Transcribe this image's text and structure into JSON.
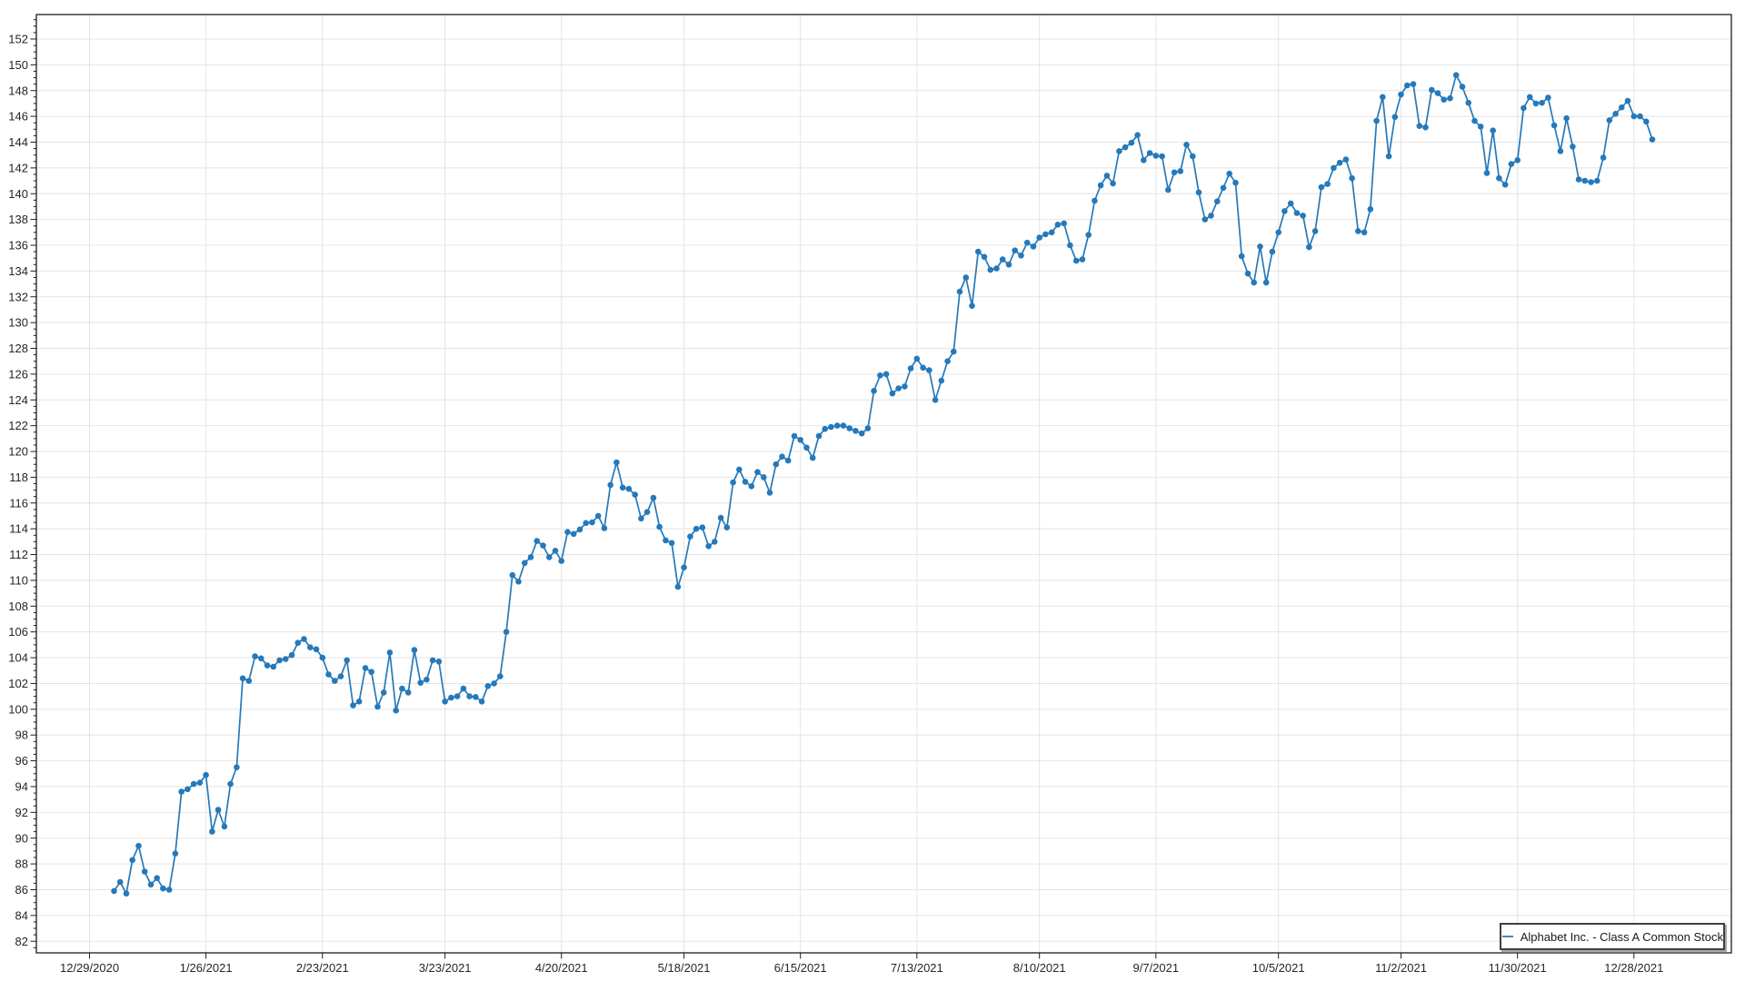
{
  "app": {
    "background": "#ffffff"
  },
  "legend": {
    "label": "Alphabet Inc. - Class A Common Stock",
    "position": "bottom-right"
  },
  "colors": {
    "background": "#ffffff",
    "line": "#2579ba",
    "marker": "#2579ba",
    "grid": "#e4e4e4",
    "axis": "#1c1c1c",
    "tick_label": "#262626",
    "legend_border": "#3f3f3f",
    "legend_shadow": "#a9a9a9",
    "legend_text": "#1a1a1a"
  },
  "chart_data": {
    "type": "line",
    "title": "",
    "grid": true,
    "markers": true,
    "legend_position": "bottom-right",
    "y_axis": {
      "min_label": 82,
      "max_label": 152,
      "step": 2,
      "minor_step": 0.5,
      "range": [
        81.1,
        153.9
      ]
    },
    "x_axis": {
      "range_indices": [
        -12.68,
        263.9
      ]
    },
    "x_ticks": [
      {
        "label": "12/29/2020",
        "index": -4
      },
      {
        "label": "1/26/2021",
        "index": 15
      },
      {
        "label": "2/23/2021",
        "index": 34
      },
      {
        "label": "3/23/2021",
        "index": 54
      },
      {
        "label": "4/20/2021",
        "index": 73
      },
      {
        "label": "5/18/2021",
        "index": 93
      },
      {
        "label": "6/15/2021",
        "index": 112
      },
      {
        "label": "7/13/2021",
        "index": 131
      },
      {
        "label": "8/10/2021",
        "index": 151
      },
      {
        "label": "9/7/2021",
        "index": 170
      },
      {
        "label": "10/5/2021",
        "index": 190
      },
      {
        "label": "11/2/2021",
        "index": 210
      },
      {
        "label": "11/30/2021",
        "index": 229
      },
      {
        "label": "12/28/2021",
        "index": 248
      }
    ],
    "series": [
      {
        "name": "Alphabet Inc. - Class A Common Stock",
        "color": "#2579ba",
        "marker": "circle",
        "values": [
          85.9,
          86.6,
          85.7,
          88.3,
          89.4,
          87.4,
          86.4,
          86.9,
          86.1,
          86.0,
          88.8,
          93.6,
          93.8,
          94.2,
          94.3,
          94.9,
          90.5,
          92.2,
          90.9,
          94.2,
          95.5,
          102.4,
          102.2,
          104.1,
          103.95,
          103.4,
          103.3,
          103.8,
          103.9,
          104.2,
          105.15,
          105.45,
          104.8,
          104.65,
          104.0,
          102.7,
          102.2,
          102.55,
          103.8,
          100.3,
          100.6,
          103.2,
          102.9,
          100.2,
          101.3,
          104.4,
          99.9,
          101.6,
          101.3,
          104.6,
          102.05,
          102.3,
          103.8,
          103.7,
          100.6,
          100.9,
          101.0,
          101.6,
          101.0,
          100.95,
          100.6,
          101.8,
          102.0,
          102.55,
          106.0,
          110.4,
          109.9,
          111.35,
          111.8,
          113.05,
          112.7,
          111.8,
          112.3,
          111.5,
          113.75,
          113.6,
          113.95,
          114.45,
          114.5,
          115.0,
          114.05,
          117.4,
          119.15,
          117.2,
          117.1,
          116.65,
          114.8,
          115.3,
          116.4,
          114.15,
          113.1,
          112.9,
          109.5,
          111.0,
          113.4,
          114.0,
          114.1,
          112.65,
          113.0,
          114.85,
          114.1,
          117.6,
          118.6,
          117.65,
          117.3,
          118.4,
          118.0,
          116.8,
          119.0,
          119.6,
          119.3,
          121.2,
          120.9,
          120.3,
          119.5,
          121.2,
          121.75,
          121.9,
          122.0,
          122.0,
          121.8,
          121.6,
          121.4,
          121.8,
          124.7,
          125.9,
          126.0,
          124.5,
          124.9,
          125.05,
          126.45,
          127.2,
          126.5,
          126.3,
          124.0,
          125.5,
          127.0,
          127.75,
          132.4,
          133.5,
          131.3,
          135.5,
          135.1,
          134.1,
          134.2,
          134.9,
          134.5,
          135.6,
          135.2,
          136.2,
          135.9,
          136.6,
          136.85,
          137.0,
          137.6,
          137.7,
          136.0,
          134.8,
          134.9,
          136.8,
          139.45,
          140.65,
          141.4,
          140.8,
          143.3,
          143.6,
          143.95,
          144.55,
          142.6,
          143.15,
          142.95,
          142.9,
          140.3,
          141.65,
          141.75,
          143.8,
          142.9,
          140.1,
          138.0,
          138.3,
          139.4,
          140.45,
          141.55,
          140.85,
          135.15,
          133.8,
          133.1,
          135.9,
          133.1,
          135.5,
          137.0,
          138.65,
          139.25,
          138.5,
          138.3,
          135.85,
          137.1,
          140.5,
          140.75,
          142.0,
          142.4,
          142.65,
          141.2,
          137.1,
          137.0,
          138.8,
          145.65,
          147.5,
          142.9,
          145.95,
          147.7,
          148.4,
          148.5,
          145.25,
          145.15,
          148.05,
          147.8,
          147.3,
          147.4,
          149.2,
          148.3,
          147.05,
          145.65,
          145.2,
          141.6,
          144.9,
          141.2,
          140.7,
          142.3,
          142.6,
          146.65,
          147.5,
          147.0,
          147.05,
          147.45,
          145.3,
          143.3,
          145.85,
          143.65,
          141.1,
          141.0,
          140.9,
          141.0,
          142.8,
          145.7,
          146.2,
          146.7,
          147.2,
          146.0,
          146.0,
          145.6,
          144.2
        ]
      }
    ]
  }
}
